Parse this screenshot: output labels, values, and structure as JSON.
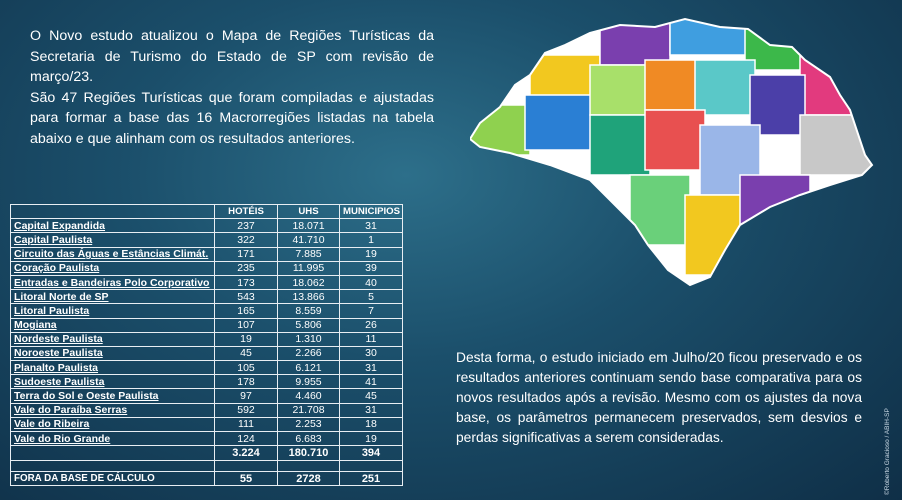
{
  "intro": {
    "paragraph1": "O Novo estudo atualizou o Mapa de Regiões Turísticas da Secretaria de Turismo do Estado de SP com revisão de março/23.",
    "paragraph2": "São 47 Regiões Turísticas que foram compiladas e ajustadas para formar a base das 16 Macrorregiões listadas na tabela abaixo e que alinham com os resultados anteriores."
  },
  "conclusion": "Desta forma, o estudo iniciado em Julho/20 ficou preservado e os resultados anteriores continuam sendo base comparativa para os novos resultados após a revisão. Mesmo com os ajustes da nova base, os parâmetros permanecem preservados, sem desvios e perdas significativas a serem consideradas.",
  "credit": "©Roberto Gracioso / ABIH-SP",
  "table": {
    "headers": [
      "HOTÉIS",
      "UHS",
      "MUNICIPIOS"
    ],
    "rows": [
      {
        "name": "Capital Expandida",
        "hoteis": "237",
        "uhs": "18.071",
        "municipios": "31"
      },
      {
        "name": "Capital Paulista",
        "hoteis": "322",
        "uhs": "41.710",
        "municipios": "1"
      },
      {
        "name": "Circuito das Águas e Estâncias Climát.",
        "hoteis": "171",
        "uhs": "7.885",
        "municipios": "19"
      },
      {
        "name": "Coração Paulista",
        "hoteis": "235",
        "uhs": "11.995",
        "municipios": "39"
      },
      {
        "name": "Entradas e Bandeiras Polo Corporativo",
        "hoteis": "173",
        "uhs": "18.062",
        "municipios": "40"
      },
      {
        "name": "Litoral Norte de SP",
        "hoteis": "543",
        "uhs": "13.866",
        "municipios": "5"
      },
      {
        "name": "Litoral Paulista",
        "hoteis": "165",
        "uhs": "8.559",
        "municipios": "7"
      },
      {
        "name": "Mogiana",
        "hoteis": "107",
        "uhs": "5.806",
        "municipios": "26"
      },
      {
        "name": "Nordeste Paulista",
        "hoteis": "19",
        "uhs": "1.310",
        "municipios": "11"
      },
      {
        "name": "Noroeste Paulista",
        "hoteis": "45",
        "uhs": "2.266",
        "municipios": "30"
      },
      {
        "name": "Planalto Paulista",
        "hoteis": "105",
        "uhs": "6.121",
        "municipios": "31"
      },
      {
        "name": "Sudoeste Paulista",
        "hoteis": "178",
        "uhs": "9.955",
        "municipios": "41"
      },
      {
        "name": "Terra do Sol e Oeste Paulista",
        "hoteis": "97",
        "uhs": "4.460",
        "municipios": "45"
      },
      {
        "name": "Vale do Paraíba Serras",
        "hoteis": "592",
        "uhs": "21.708",
        "municipios": "31"
      },
      {
        "name": "Vale do Ribeira",
        "hoteis": "111",
        "uhs": "2.253",
        "municipios": "18"
      },
      {
        "name": "Vale do Rio Grande",
        "hoteis": "124",
        "uhs": "6.683",
        "municipios": "19"
      }
    ],
    "total": {
      "hoteis": "3.224",
      "uhs": "180.710",
      "municipios": "394"
    },
    "outside": {
      "label": "FORA DA BASE DE CÁLCULO",
      "hoteis": "55",
      "uhs": "2728",
      "municipios": "251"
    }
  },
  "map": {
    "region_colors": [
      "#f2c81f",
      "#7a3fae",
      "#3f9ee0",
      "#3cb84a",
      "#e23a7e",
      "#8fd14f",
      "#2a7fd4",
      "#a8e06a",
      "#f08a24",
      "#5ac8c8",
      "#4b3fa8",
      "#c8c8c8",
      "#1fa37a",
      "#e85050",
      "#9ab6e8",
      "#6ad07a"
    ],
    "land_color": "#ffffff"
  }
}
